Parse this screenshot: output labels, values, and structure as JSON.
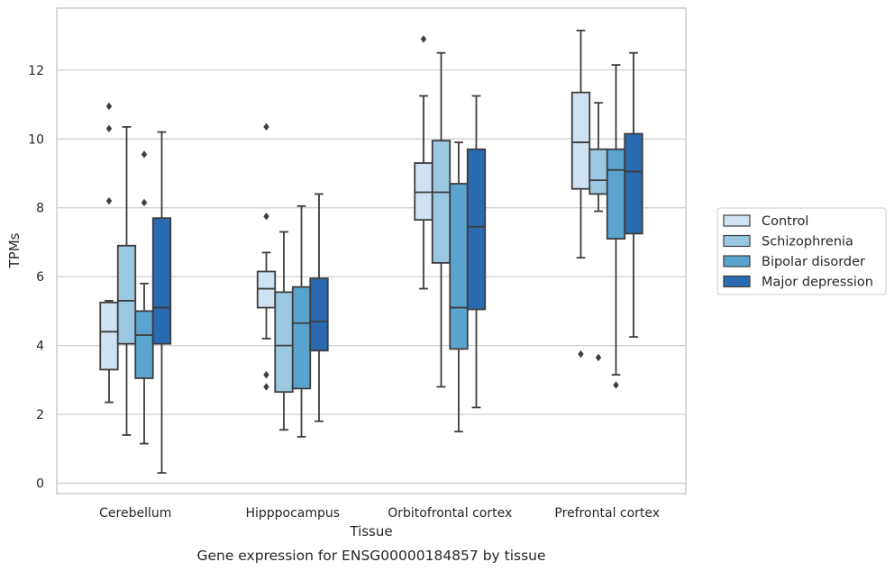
{
  "chart_data": {
    "type": "box",
    "caption": "Gene expression for ENSG00000184857 by tissue",
    "xlabel": "Tissue",
    "ylabel": "TPMs",
    "ylim": [
      -0.3,
      13.8
    ],
    "yticks": [
      0,
      2,
      4,
      6,
      8,
      10,
      12
    ],
    "grid": true,
    "legend_position": "right",
    "categories": [
      "Cerebellum",
      "Hipppocampus",
      "Orbitofrontal cortex",
      "Prefrontal cortex"
    ],
    "series": [
      {
        "name": "Control",
        "color": "#d0e1f2",
        "boxes": [
          {
            "whisker_low": 2.35,
            "q1": 3.3,
            "median": 4.4,
            "q3": 5.25,
            "whisker_high": 5.3,
            "outliers": [
              8.2,
              10.3,
              10.95
            ]
          },
          {
            "whisker_low": 4.2,
            "q1": 5.1,
            "median": 5.65,
            "q3": 6.15,
            "whisker_high": 6.7,
            "outliers": [
              2.8,
              3.15,
              7.75,
              10.35
            ]
          },
          {
            "whisker_low": 5.65,
            "q1": 7.65,
            "median": 8.45,
            "q3": 9.3,
            "whisker_high": 11.25,
            "outliers": [
              12.9
            ]
          },
          {
            "whisker_low": 6.55,
            "q1": 8.55,
            "median": 9.9,
            "q3": 11.35,
            "whisker_high": 13.15,
            "outliers": [
              3.75
            ]
          }
        ]
      },
      {
        "name": "Schizophrenia",
        "color": "#9ac8e0",
        "boxes": [
          {
            "whisker_low": 1.4,
            "q1": 4.05,
            "median": 5.3,
            "q3": 6.9,
            "whisker_high": 10.35,
            "outliers": []
          },
          {
            "whisker_low": 1.55,
            "q1": 2.65,
            "median": 4.0,
            "q3": 5.55,
            "whisker_high": 7.3,
            "outliers": []
          },
          {
            "whisker_low": 2.8,
            "q1": 6.4,
            "median": 8.45,
            "q3": 9.95,
            "whisker_high": 12.5,
            "outliers": []
          },
          {
            "whisker_low": 7.9,
            "q1": 8.4,
            "median": 8.8,
            "q3": 9.7,
            "whisker_high": 11.05,
            "outliers": [
              3.65
            ]
          }
        ]
      },
      {
        "name": "Bipolar disorder",
        "color": "#5ba3cf",
        "boxes": [
          {
            "whisker_low": 1.15,
            "q1": 3.05,
            "median": 4.3,
            "q3": 5.0,
            "whisker_high": 5.8,
            "outliers": [
              8.15,
              9.55
            ]
          },
          {
            "whisker_low": 1.35,
            "q1": 2.75,
            "median": 4.65,
            "q3": 5.7,
            "whisker_high": 8.05,
            "outliers": []
          },
          {
            "whisker_low": 1.5,
            "q1": 3.9,
            "median": 5.1,
            "q3": 8.7,
            "whisker_high": 9.9,
            "outliers": []
          },
          {
            "whisker_low": 3.15,
            "q1": 7.1,
            "median": 9.1,
            "q3": 9.7,
            "whisker_high": 12.15,
            "outliers": [
              2.85
            ]
          }
        ]
      },
      {
        "name": "Major depression",
        "color": "#2a6ab0",
        "boxes": [
          {
            "whisker_low": 0.3,
            "q1": 4.05,
            "median": 5.1,
            "q3": 7.7,
            "whisker_high": 10.2,
            "outliers": []
          },
          {
            "whisker_low": 1.8,
            "q1": 3.85,
            "median": 4.7,
            "q3": 5.95,
            "whisker_high": 8.4,
            "outliers": []
          },
          {
            "whisker_low": 2.2,
            "q1": 5.05,
            "median": 7.45,
            "q3": 9.7,
            "whisker_high": 11.25,
            "outliers": []
          },
          {
            "whisker_low": 4.25,
            "q1": 7.25,
            "median": 9.05,
            "q3": 10.15,
            "whisker_high": 12.5,
            "outliers": []
          }
        ]
      }
    ]
  }
}
